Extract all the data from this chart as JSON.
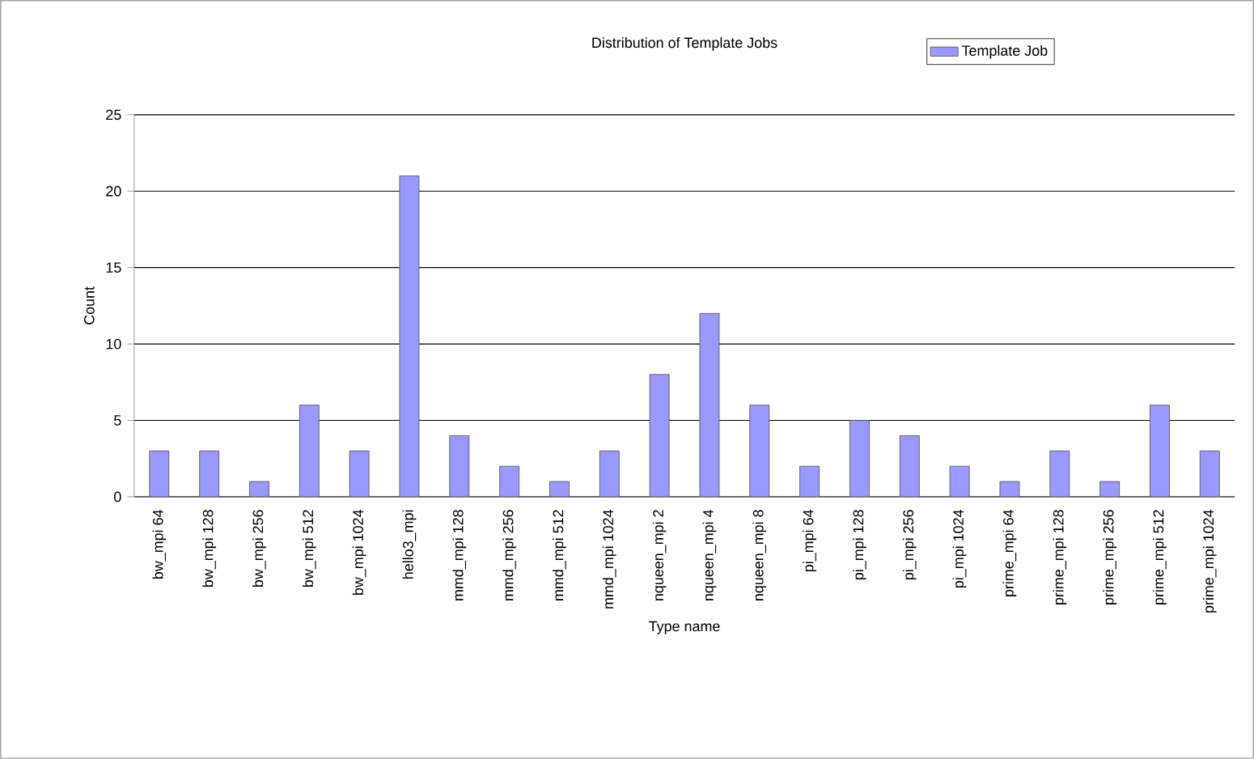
{
  "chart_data": {
    "type": "bar",
    "title": "Distribution of Template Jobs",
    "xlabel": "Type name",
    "ylabel": "Count",
    "categories": [
      "bw_mpi 64",
      "bw_mpi 128",
      "bw_mpi 256",
      "bw_mpi 512",
      "bw_mpi 1024",
      "hello3_mpi",
      "mmd_mpi 128",
      "mmd_mpi 256",
      "mmd_mpi 512",
      "mmd_mpi 1024",
      "nqueen_mpi 2",
      "nqueen_mpi 4",
      "nqueen_mpi 8",
      "pi_mpi 64",
      "pi_mpi 128",
      "pi_mpi 256",
      "pi_mpi 1024",
      "prime_mpi 64",
      "prime_mpi 128",
      "prime_mpi 256",
      "prime_mpi 512",
      "prime_mpi 1024"
    ],
    "series": [
      {
        "name": "Template Job",
        "color": "#9999ff",
        "values": [
          3,
          3,
          1,
          6,
          3,
          21,
          4,
          2,
          1,
          3,
          8,
          12,
          6,
          2,
          5,
          4,
          2,
          1,
          3,
          1,
          6,
          3
        ]
      }
    ],
    "ylim": [
      0,
      25
    ],
    "yticks": [
      0,
      5,
      10,
      15,
      20,
      25
    ],
    "grid": "y",
    "legend": "top right"
  }
}
